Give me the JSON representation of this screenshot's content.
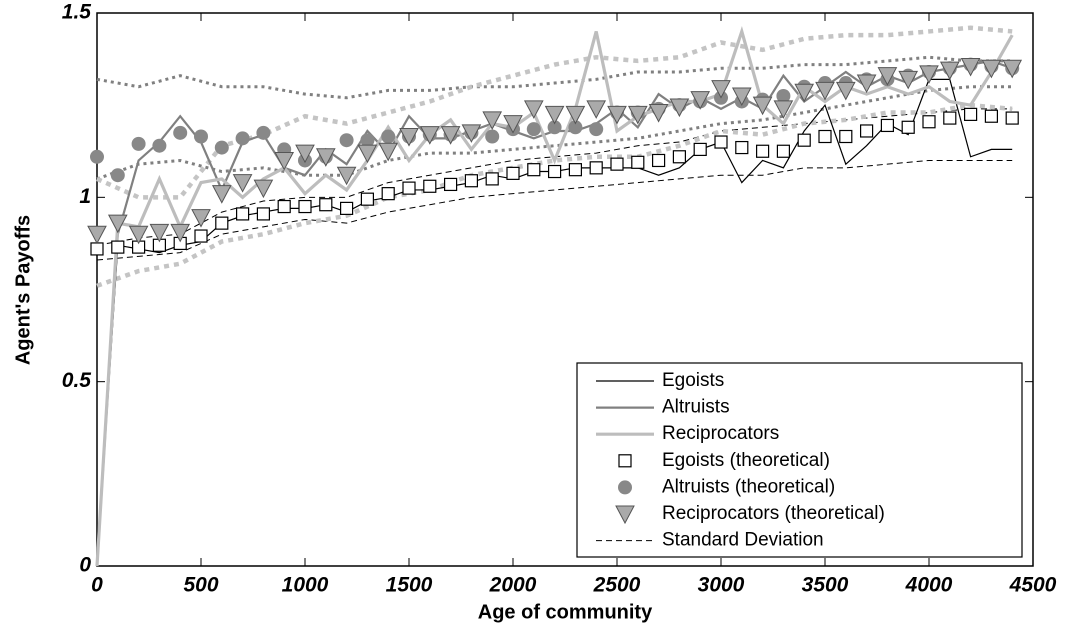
{
  "chart_data": {
    "type": "line",
    "xlabel": "Age of community",
    "ylabel": "Agent's Payoffs",
    "xlim": [
      0,
      4500
    ],
    "ylim": [
      0,
      1.5
    ],
    "xticks": [
      0,
      500,
      1000,
      1500,
      2000,
      2500,
      3000,
      3500,
      4000,
      4500
    ],
    "yticks": [
      0,
      0.5,
      1,
      1.5
    ],
    "x": [
      0,
      100,
      200,
      300,
      400,
      500,
      600,
      700,
      800,
      900,
      1000,
      1100,
      1200,
      1300,
      1400,
      1500,
      1600,
      1700,
      1800,
      1900,
      2000,
      2100,
      2200,
      2300,
      2400,
      2500,
      2600,
      2700,
      2800,
      2900,
      3000,
      3100,
      3200,
      3300,
      3400,
      3500,
      3600,
      3700,
      3800,
      3900,
      4000,
      4100,
      4200,
      4300,
      4400
    ],
    "legend": "lower right",
    "series": [
      {
        "name": "Egoists",
        "color": "#000000",
        "width": 1.2,
        "values": [
          0,
          0.87,
          0.86,
          0.85,
          0.87,
          0.88,
          0.93,
          0.95,
          0.96,
          0.97,
          0.97,
          0.98,
          0.96,
          0.99,
          1.0,
          1.02,
          1.02,
          1.03,
          1.04,
          1.06,
          1.05,
          1.07,
          1.07,
          1.08,
          1.08,
          1.08,
          1.08,
          1.06,
          1.08,
          1.13,
          1.15,
          1.04,
          1.1,
          1.08,
          1.18,
          1.25,
          1.09,
          1.14,
          1.2,
          1.17,
          1.32,
          1.32,
          1.11,
          1.13,
          1.13
        ]
      },
      {
        "name": "Altruists",
        "color": "#808080",
        "width": 2.2,
        "values": [
          0,
          0.9,
          1.1,
          1.15,
          1.22,
          1.15,
          1.02,
          1.15,
          1.17,
          1.08,
          1.06,
          1.13,
          1.09,
          1.18,
          1.12,
          1.22,
          1.16,
          1.16,
          1.18,
          1.2,
          1.18,
          1.16,
          1.18,
          1.18,
          1.2,
          1.24,
          1.19,
          1.28,
          1.24,
          1.27,
          1.24,
          1.27,
          1.24,
          1.33,
          1.26,
          1.3,
          1.34,
          1.3,
          1.33,
          1.31,
          1.34,
          1.35,
          1.36,
          1.37,
          1.35
        ]
      },
      {
        "name": "Reciprocators",
        "color": "#bdbdbd",
        "width": 3.2,
        "values": [
          0,
          0.93,
          0.92,
          1.05,
          0.92,
          1.04,
          1.05,
          1.0,
          1.05,
          1.08,
          1.01,
          1.06,
          1.02,
          1.1,
          1.19,
          1.1,
          1.17,
          1.21,
          1.13,
          1.2,
          1.19,
          1.23,
          1.1,
          1.24,
          1.45,
          1.18,
          1.22,
          1.24,
          1.26,
          1.26,
          1.28,
          1.45,
          1.25,
          1.2,
          1.3,
          1.26,
          1.3,
          1.28,
          1.3,
          1.28,
          1.3,
          1.26,
          1.25,
          1.34,
          1.44
        ]
      },
      {
        "name": "Egoists (theoretical)",
        "color": "#000000",
        "marker": "square",
        "values": [
          0.86,
          0.865,
          0.865,
          0.87,
          0.875,
          0.895,
          0.93,
          0.955,
          0.955,
          0.975,
          0.975,
          0.98,
          0.97,
          0.995,
          1.01,
          1.025,
          1.03,
          1.035,
          1.045,
          1.05,
          1.065,
          1.075,
          1.07,
          1.075,
          1.08,
          1.09,
          1.095,
          1.1,
          1.11,
          1.13,
          1.15,
          1.135,
          1.125,
          1.125,
          1.155,
          1.165,
          1.165,
          1.18,
          1.195,
          1.19,
          1.205,
          1.215,
          1.225,
          1.22,
          1.215
        ]
      },
      {
        "name": "Altruists (theoretical)",
        "color": "#888888",
        "marker": "circle",
        "values": [
          1.11,
          1.06,
          1.145,
          1.14,
          1.175,
          1.165,
          1.135,
          1.16,
          1.175,
          1.13,
          1.1,
          1.11,
          1.155,
          1.155,
          1.165,
          1.165,
          1.17,
          1.17,
          1.175,
          1.165,
          1.185,
          1.185,
          1.19,
          1.19,
          1.185,
          1.23,
          1.23,
          1.24,
          1.25,
          1.26,
          1.27,
          1.26,
          1.265,
          1.275,
          1.3,
          1.31,
          1.31,
          1.32,
          1.32,
          1.33,
          1.34,
          1.35,
          1.36,
          1.355,
          1.35
        ]
      },
      {
        "name": "Reciprocators (theoretical)",
        "color": "#aaaaaa",
        "marker": "triangle",
        "values": [
          0.9,
          0.93,
          0.9,
          0.905,
          0.905,
          0.945,
          1.01,
          1.04,
          1.025,
          1.1,
          1.12,
          1.11,
          1.06,
          1.12,
          1.125,
          1.165,
          1.17,
          1.17,
          1.175,
          1.21,
          1.2,
          1.24,
          1.225,
          1.225,
          1.24,
          1.225,
          1.225,
          1.23,
          1.245,
          1.265,
          1.295,
          1.275,
          1.25,
          1.24,
          1.285,
          1.29,
          1.29,
          1.31,
          1.33,
          1.32,
          1.335,
          1.345,
          1.355,
          1.35,
          1.35
        ]
      },
      {
        "name": "Standard Deviation",
        "color": "#000000",
        "width": 1,
        "dash": "6 4",
        "x": [
          0,
          200,
          400,
          600,
          800,
          1000,
          1200,
          1400,
          1600,
          1800,
          2000,
          2200,
          2400,
          2600,
          2800,
          3000,
          3200,
          3400,
          3600,
          3800,
          4000,
          4200,
          4400
        ],
        "values": [
          0.87,
          0.89,
          0.9,
          0.96,
          0.99,
          1.0,
          1.0,
          1.04,
          1.06,
          1.08,
          1.1,
          1.11,
          1.12,
          1.14,
          1.15,
          1.18,
          1.19,
          1.2,
          1.21,
          1.22,
          1.23,
          1.24,
          1.24
        ]
      },
      {
        "color": "#000000",
        "width": 1,
        "dash": "6 4",
        "x": [
          0,
          200,
          400,
          600,
          800,
          1000,
          1200,
          1400,
          1600,
          1800,
          2000,
          2200,
          2400,
          2600,
          2800,
          3000,
          3200,
          3400,
          3600,
          3800,
          4000,
          4200,
          4400
        ],
        "values": [
          0.83,
          0.84,
          0.85,
          0.9,
          0.92,
          0.94,
          0.93,
          0.96,
          0.98,
          1.0,
          1.01,
          1.02,
          1.03,
          1.04,
          1.05,
          1.06,
          1.06,
          1.08,
          1.08,
          1.09,
          1.1,
          1.1,
          1.1
        ]
      },
      {
        "color": "#808080",
        "width": 3,
        "dash": "3 4",
        "x": [
          0,
          200,
          400,
          600,
          800,
          1000,
          1200,
          1400,
          1600,
          1800,
          2000,
          2200,
          2400,
          2600,
          2800,
          3000,
          3200,
          3400,
          3600,
          3800,
          4000,
          4200,
          4400
        ],
        "values": [
          1.32,
          1.3,
          1.33,
          1.3,
          1.3,
          1.28,
          1.27,
          1.29,
          1.29,
          1.3,
          1.3,
          1.31,
          1.32,
          1.34,
          1.34,
          1.35,
          1.35,
          1.36,
          1.36,
          1.37,
          1.38,
          1.37,
          1.37
        ]
      },
      {
        "color": "#808080",
        "width": 3,
        "dash": "3 4",
        "x": [
          0,
          200,
          400,
          600,
          800,
          1000,
          1200,
          1400,
          1600,
          1800,
          2000,
          2200,
          2400,
          2600,
          2800,
          3000,
          3200,
          3400,
          3600,
          3800,
          4000,
          4200,
          4400
        ],
        "values": [
          1.05,
          1.09,
          1.1,
          1.07,
          1.08,
          1.06,
          1.06,
          1.1,
          1.12,
          1.12,
          1.13,
          1.14,
          1.15,
          1.16,
          1.18,
          1.2,
          1.21,
          1.23,
          1.25,
          1.27,
          1.29,
          1.3,
          1.3
        ]
      },
      {
        "color": "#c4c4c4",
        "width": 4.5,
        "dash": "5 5",
        "x": [
          0,
          200,
          400,
          600,
          800,
          1000,
          1200,
          1400,
          1600,
          1800,
          2000,
          2200,
          2400,
          2600,
          2800,
          3000,
          3200,
          3400,
          3600,
          3800,
          4000,
          4200,
          4400
        ],
        "values": [
          1.05,
          1.0,
          1.0,
          1.14,
          1.17,
          1.22,
          1.2,
          1.23,
          1.26,
          1.3,
          1.33,
          1.36,
          1.38,
          1.37,
          1.38,
          1.42,
          1.4,
          1.43,
          1.44,
          1.44,
          1.45,
          1.46,
          1.45
        ]
      },
      {
        "color": "#c4c4c4",
        "width": 4.5,
        "dash": "5 5",
        "x": [
          0,
          200,
          400,
          600,
          800,
          1000,
          1200,
          1400,
          1600,
          1800,
          2000,
          2200,
          2400,
          2600,
          2800,
          3000,
          3200,
          3400,
          3600,
          3800,
          4000,
          4200,
          4400
        ],
        "values": [
          0.76,
          0.8,
          0.82,
          0.88,
          0.9,
          0.93,
          0.95,
          1.0,
          1.02,
          1.06,
          1.08,
          1.1,
          1.11,
          1.11,
          1.14,
          1.18,
          1.17,
          1.2,
          1.21,
          1.23,
          1.23,
          1.25,
          1.24
        ]
      }
    ]
  }
}
